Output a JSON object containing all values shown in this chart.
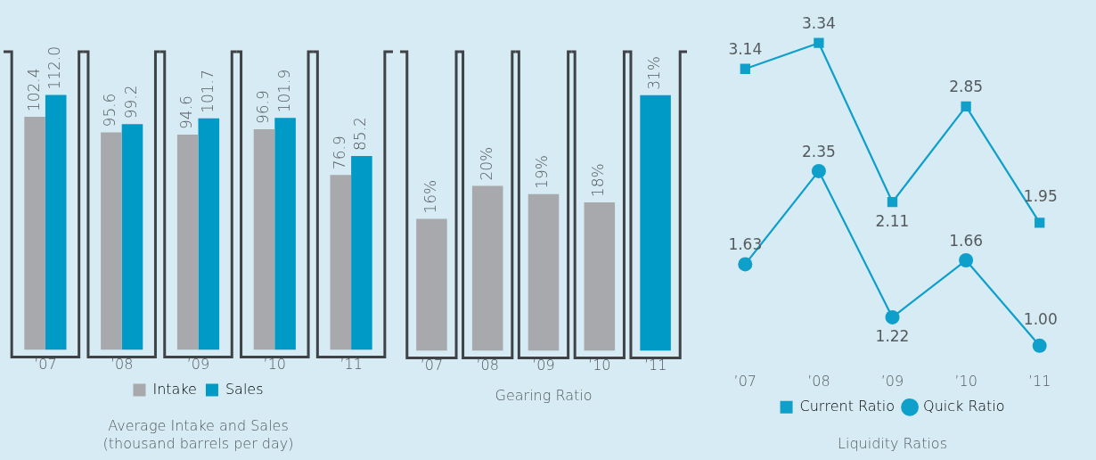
{
  "chart_data": [
    {
      "type": "bar",
      "title": "Average Intake and Sales\n(thousand barrels per day)",
      "categories": [
        "’07",
        "’08",
        "’09",
        "’10",
        "’11"
      ],
      "legend": "bottom",
      "series": [
        {
          "name": "Intake",
          "color": "#a7a9ac",
          "values": [
            102.4,
            95.6,
            94.6,
            96.9,
            76.9
          ],
          "value_labels": [
            "102.4",
            "95.6",
            "94.6",
            "96.9",
            "76.9"
          ]
        },
        {
          "name": "Sales",
          "color": "#009ac7",
          "values": [
            112.0,
            99.2,
            101.7,
            101.9,
            85.2
          ],
          "value_labels": [
            "112.0",
            "99.2",
            "101.7",
            "101.9",
            "85.2"
          ]
        }
      ]
    },
    {
      "type": "bar",
      "title": "Gearing Ratio",
      "categories": [
        "’07",
        "’08",
        "’09",
        "’10",
        "’11"
      ],
      "values": [
        16,
        20,
        19,
        18,
        31
      ],
      "colors": [
        "#a7a9ac",
        "#a7a9ac",
        "#a7a9ac",
        "#a7a9ac",
        "#009ac7"
      ],
      "value_labels": [
        "16%",
        "20%",
        "19%",
        "18%",
        "31%"
      ]
    },
    {
      "type": "line",
      "title": "Liquidity Ratios",
      "categories": [
        "’07",
        "’08",
        "’09",
        "’10",
        "’11"
      ],
      "legend": "bottom",
      "series": [
        {
          "name": "Current Ratio",
          "color": "#0e9fcb",
          "marker": "square",
          "values": [
            3.14,
            3.34,
            2.11,
            2.85,
            1.95
          ],
          "value_labels": [
            "3.14",
            "3.34",
            "2.11",
            "2.85",
            "1.95"
          ]
        },
        {
          "name": "Quick Ratio",
          "color": "#0e9fcb",
          "marker": "circle",
          "values": [
            1.63,
            2.35,
            1.22,
            1.66,
            1.0
          ],
          "value_labels": [
            "1.63",
            "2.35",
            "1.22",
            "1.66",
            "1.00"
          ]
        }
      ]
    }
  ]
}
